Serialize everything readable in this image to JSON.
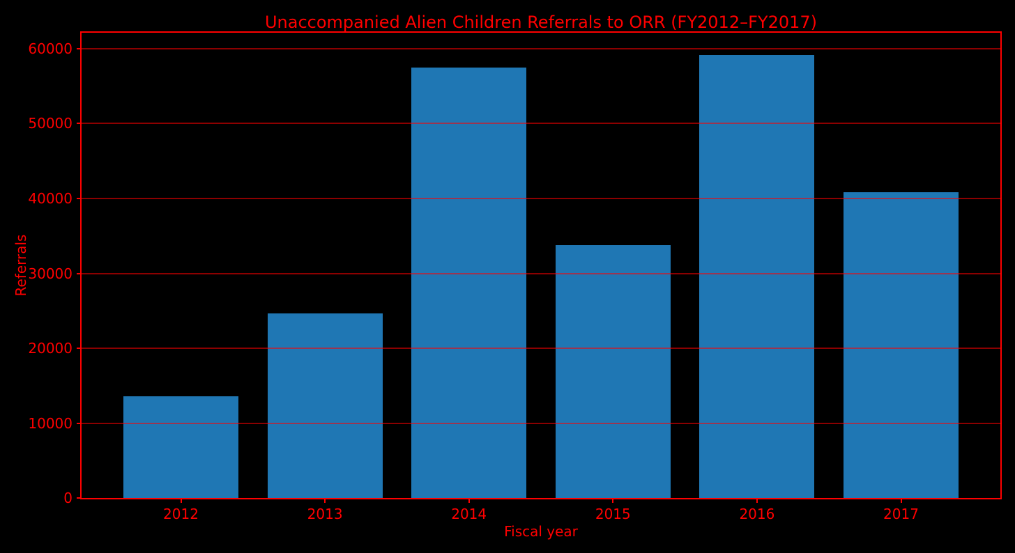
{
  "chart_data": {
    "type": "bar",
    "title": "Unaccompanied Alien Children Referrals to ORR (FY2012–FY2017)",
    "xlabel": "Fiscal year",
    "ylabel": "Referrals",
    "categories": [
      "2012",
      "2013",
      "2014",
      "2015",
      "2016",
      "2017"
    ],
    "values": [
      13625,
      24668,
      57496,
      33726,
      59170,
      40810
    ],
    "yticks": [
      0,
      10000,
      20000,
      30000,
      40000,
      50000,
      60000
    ],
    "ylim": [
      0,
      62130
    ],
    "grid": true,
    "grid_on_top_of_bars": true,
    "legend": "none",
    "bar_width_fraction": 0.8,
    "x_edge_margin_units": 0.69,
    "colors": {
      "background": "#000000",
      "accent": "#ff0000",
      "bar_fill": "#1f77b4",
      "gridline": "rgba(255,0,0,0.55)"
    }
  }
}
